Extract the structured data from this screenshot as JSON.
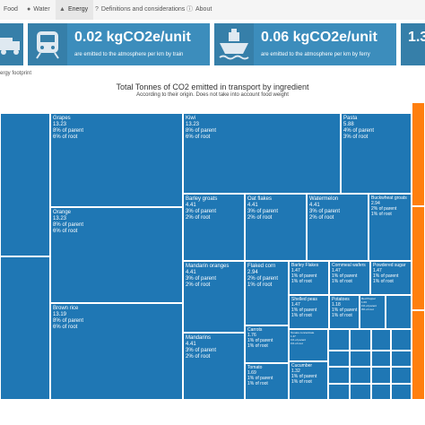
{
  "nav": {
    "tabs": [
      {
        "label": "Food",
        "icon": "",
        "active": false
      },
      {
        "label": "Water",
        "icon": "tint-icon",
        "active": false
      },
      {
        "label": "Energy",
        "icon": "fire-icon",
        "active": true
      },
      {
        "label": "Definitions and considerations",
        "icon": "question-icon",
        "active": false
      },
      {
        "label": "About",
        "icon": "info-icon",
        "active": false
      }
    ]
  },
  "cards": [
    {
      "value": "",
      "caption": "",
      "icon": "truck-icon"
    },
    {
      "value": "0.02 kgCO2e/unit",
      "caption": "are emitted to the atmosphere per km by train",
      "icon": "train-icon"
    },
    {
      "value": "0.06 kgCO2e/unit",
      "caption": "are emitted to the atmosphere per km by ferry",
      "icon": "ship-icon"
    },
    {
      "value": "1.3",
      "caption": "",
      "icon": ""
    }
  ],
  "section_label": "ergy footprint",
  "chart": {
    "title": "Total Tonnes of CO2 emitted in transport by ingredient",
    "subtitle": "According to their origin. Does not take into account food weight"
  },
  "chart_data": {
    "type": "treemap",
    "title": "Total Tonnes of CO2 emitted in transport by ingredient",
    "subtitle": "According to their origin. Does not take into account food weight",
    "items": [
      {
        "name": "Grapes",
        "value": 13.23,
        "parent_pct": "8% of parent",
        "root_pct": "6% of root"
      },
      {
        "name": "Kiwi",
        "value": 13.23,
        "parent_pct": "8% of parent",
        "root_pct": "6% of root"
      },
      {
        "name": "Pasta",
        "value": 5.88,
        "parent_pct": "4% of parent",
        "root_pct": "3% of root"
      },
      {
        "name": "Orange",
        "value": 13.23,
        "parent_pct": "8% of parent",
        "root_pct": "6% of root"
      },
      {
        "name": "Barley groats",
        "value": 4.41,
        "parent_pct": "3% of parent",
        "root_pct": "2% of root"
      },
      {
        "name": "Oat flakes",
        "value": 4.41,
        "parent_pct": "3% of parent",
        "root_pct": "2% of root"
      },
      {
        "name": "Watermelon",
        "value": 4.41,
        "parent_pct": "3% of parent",
        "root_pct": "2% of root"
      },
      {
        "name": "Buckwheat groats",
        "value": 2.94,
        "parent_pct": "2% of parent",
        "root_pct": "1% of root"
      },
      {
        "name": "Mandarin oranges",
        "value": 4.41,
        "parent_pct": "3% of parent",
        "root_pct": "2% of root"
      },
      {
        "name": "Flaked corn",
        "value": 2.94,
        "parent_pct": "2% of parent",
        "root_pct": "1% of root"
      },
      {
        "name": "Barley Flakes",
        "value": 1.47,
        "parent_pct": "1% of parent",
        "root_pct": "1% of root"
      },
      {
        "name": "Cornmeal wafers",
        "value": 1.47,
        "parent_pct": "1% of parent",
        "root_pct": "1% of root"
      },
      {
        "name": "Powdered sugar",
        "value": 1.47,
        "parent_pct": "1% of parent",
        "root_pct": "1% of root"
      },
      {
        "name": "Shelled peas",
        "value": 1.47,
        "parent_pct": "1% of parent",
        "root_pct": "1% of root"
      },
      {
        "name": "Potatoes",
        "value": 1.18,
        "parent_pct": "1% of parent",
        "root_pct": "1% of root"
      },
      {
        "name": "Red Pepper",
        "value": 1.03,
        "parent_pct": "1% of parent",
        "root_pct": "0% of root"
      },
      {
        "name": "Brown rice",
        "value": 13.19,
        "parent_pct": "8% of parent",
        "root_pct": "6% of root"
      },
      {
        "name": "Mandarins",
        "value": 4.41,
        "parent_pct": "3% of parent",
        "root_pct": "2% of root"
      },
      {
        "name": "Carrots",
        "value": 1.76,
        "parent_pct": "1% of parent",
        "root_pct": "1% of root"
      },
      {
        "name": "Tomato concentrate",
        "value": 1.47,
        "parent_pct": "1% of parent",
        "root_pct": "1% of root"
      },
      {
        "name": "Tomato",
        "value": 1.69,
        "parent_pct": "1% of parent",
        "root_pct": "1% of root"
      },
      {
        "name": "Cucumber",
        "value": 1.32,
        "parent_pct": "1% of parent",
        "root_pct": "1% of root"
      }
    ]
  }
}
